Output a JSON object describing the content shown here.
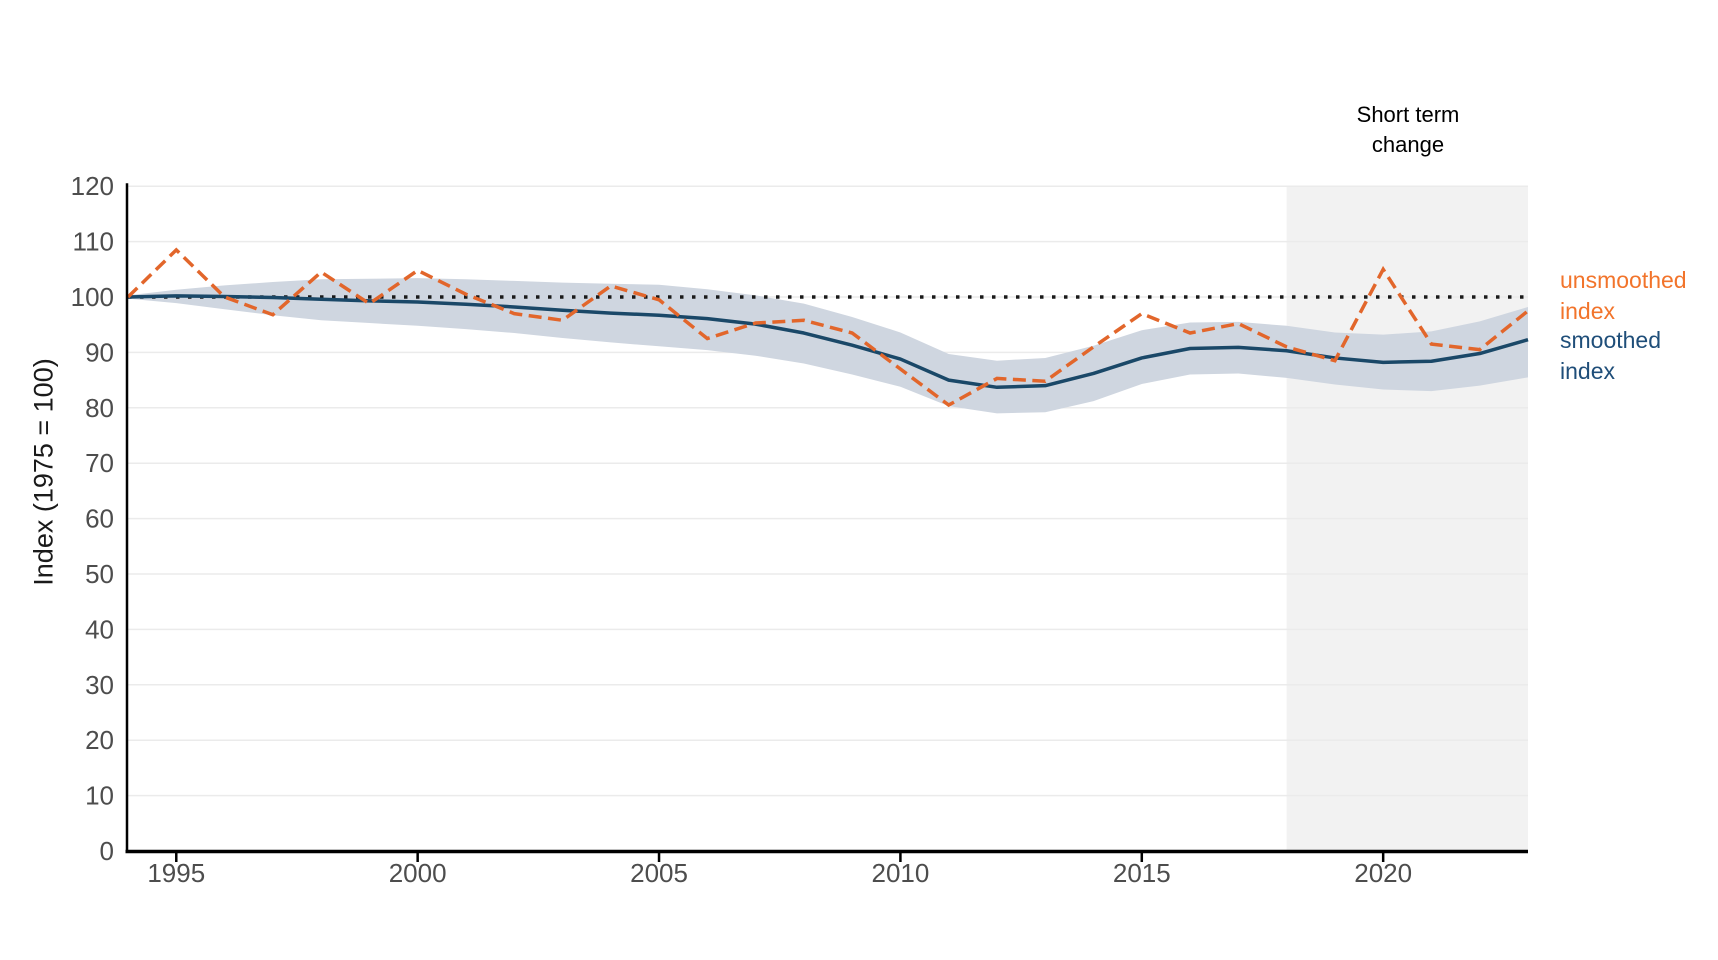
{
  "annotation": {
    "line1": "Short term",
    "line2": "change"
  },
  "legend": {
    "unsmoothed": {
      "line1": "unsmoothed",
      "line2": "index"
    },
    "smoothed": {
      "line1": "smoothed",
      "line2": "index"
    }
  },
  "colors": {
    "unsmoothed_line": "#e2662b",
    "unsmoothed_text": "#f2742b",
    "smoothed_line": "#1a4868",
    "smoothed_text": "#1f4e79",
    "confidence_band": "#cfd6e0",
    "short_term_region": "#f2f2f2",
    "gridline": "#ebebeb",
    "reference_line": "#1a1a1a",
    "axis_line": "#000000",
    "tick_text": "#4d4d4d"
  },
  "chart_data": {
    "type": "line",
    "title": "",
    "xlabel": "",
    "ylabel": "Index (1975 = 100)",
    "xlim": [
      1994,
      2023
    ],
    "ylim": [
      0,
      120
    ],
    "ytick_step": 10,
    "xticks": [
      1995,
      2000,
      2005,
      2010,
      2015,
      2020
    ],
    "grid": "horizontal",
    "legend_position": "right",
    "x": [
      1994,
      1995,
      1996,
      1997,
      1998,
      1999,
      2000,
      2001,
      2002,
      2003,
      2004,
      2005,
      2006,
      2007,
      2008,
      2009,
      2010,
      2011,
      2012,
      2013,
      2014,
      2015,
      2016,
      2017,
      2018,
      2019,
      2020,
      2021,
      2022,
      2023
    ],
    "series": [
      {
        "name": "unsmoothed index",
        "style": "dashed",
        "values": [
          100,
          108.5,
          100,
          96.8,
          104.5,
          98.8,
          104.8,
          100.5,
          97,
          95.8,
          102,
          99.5,
          92.5,
          95.3,
          95.8,
          93.5,
          87,
          80.5,
          85.3,
          84.8,
          91,
          97,
          93.5,
          95.2,
          91,
          88.5,
          105,
          91.5,
          90.5,
          97.5
        ]
      },
      {
        "name": "smoothed index",
        "style": "solid",
        "values": [
          100,
          100.2,
          100.1,
          99.9,
          99.6,
          99.3,
          99.1,
          98.7,
          98.2,
          97.6,
          97.1,
          96.7,
          96.1,
          95.1,
          93.5,
          91.3,
          88.8,
          85,
          83.7,
          84,
          86.2,
          89,
          90.7,
          90.9,
          90.3,
          89,
          88.2,
          88.4,
          89.8,
          92.3
        ]
      }
    ],
    "confidence_band": {
      "name": "smoothed index confidence band",
      "upper": [
        100.3,
        101.3,
        102.1,
        102.7,
        103.2,
        103.3,
        103.4,
        103.2,
        102.9,
        102.6,
        102.4,
        102.2,
        101.4,
        100.3,
        98.8,
        96.4,
        93.6,
        89.7,
        88.5,
        89,
        91.2,
        94,
        95.4,
        95.5,
        94.8,
        93.6,
        93.2,
        93.8,
        95.6,
        98.2
      ],
      "lower": [
        99.7,
        98.9,
        97.8,
        96.7,
        95.8,
        95.3,
        94.8,
        94.2,
        93.5,
        92.6,
        91.8,
        91.1,
        90.4,
        89.4,
        88,
        86,
        83.8,
        80.3,
        79,
        79.2,
        81.2,
        84.3,
        86,
        86.2,
        85.4,
        84.2,
        83.3,
        83,
        84,
        85.5
      ]
    },
    "reference_line": {
      "value": 100,
      "style": "dotted"
    },
    "shaded_region": {
      "label": "Short term change",
      "x_start": 2018,
      "x_end": 2023
    }
  }
}
